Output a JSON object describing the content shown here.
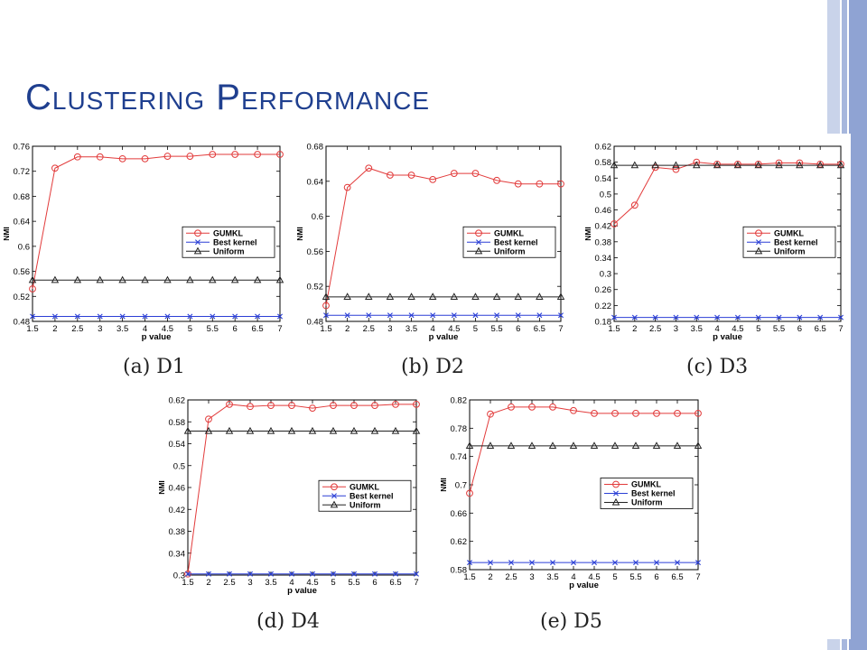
{
  "slide": {
    "title_first": "Clustering",
    "title_second": "Performance",
    "colors": {
      "title": "#1f3f8f",
      "gumkl": "#e23b3b",
      "best": "#2b3fd6",
      "uniform": "#222222"
    }
  },
  "chart_data": [
    {
      "type": "line",
      "caption": "(a) D1",
      "x": [
        1.5,
        2,
        2.5,
        3,
        3.5,
        4,
        4.5,
        5,
        5.5,
        6,
        6.5,
        7
      ],
      "x_tick_labels": [
        "1.5",
        "2",
        "2.5",
        "3",
        "3.5",
        "4",
        "4.5",
        "5",
        "5.5",
        "6",
        "6.5",
        "7"
      ],
      "xlabel": "p value",
      "ylabel": "NMI",
      "ylim": [
        0.48,
        0.76
      ],
      "y_ticks": [
        0.48,
        0.52,
        0.56,
        0.6,
        0.64,
        0.68,
        0.72,
        0.76
      ],
      "y_tick_labels": [
        "0.48",
        "0.52",
        "0.56",
        "0.6",
        "0.64",
        "0.68",
        "0.72",
        "0.76"
      ],
      "legend_position": "center-right",
      "series": [
        {
          "name": "GUMKL",
          "marker": "circle",
          "color": "#e23b3b",
          "values": [
            0.532,
            0.725,
            0.743,
            0.743,
            0.74,
            0.74,
            0.744,
            0.744,
            0.747,
            0.747,
            0.747,
            0.747
          ]
        },
        {
          "name": "Best kernel",
          "marker": "x",
          "color": "#2b3fd6",
          "values": [
            0.488,
            0.488,
            0.488,
            0.488,
            0.488,
            0.488,
            0.488,
            0.488,
            0.488,
            0.488,
            0.488,
            0.488
          ]
        },
        {
          "name": "Uniform",
          "marker": "triangle",
          "color": "#222222",
          "values": [
            0.546,
            0.546,
            0.546,
            0.546,
            0.546,
            0.546,
            0.546,
            0.546,
            0.546,
            0.546,
            0.546,
            0.546
          ]
        }
      ]
    },
    {
      "type": "line",
      "caption": "(b) D2",
      "x": [
        1.5,
        2,
        2.5,
        3,
        3.5,
        4,
        4.5,
        5,
        5.5,
        6,
        6.5,
        7
      ],
      "x_tick_labels": [
        "1.5",
        "2",
        "2.5",
        "3",
        "3.5",
        "4",
        "4.5",
        "5",
        "5.5",
        "6",
        "6.5",
        "7"
      ],
      "xlabel": "p value",
      "ylabel": "NMI",
      "ylim": [
        0.48,
        0.68
      ],
      "y_ticks": [
        0.48,
        0.52,
        0.56,
        0.6,
        0.64,
        0.68
      ],
      "y_tick_labels": [
        "0.48",
        "0.52",
        "0.56",
        "0.6",
        "0.64",
        "0.68"
      ],
      "legend_position": "center-right",
      "series": [
        {
          "name": "GUMKL",
          "marker": "circle",
          "color": "#e23b3b",
          "values": [
            0.498,
            0.633,
            0.655,
            0.647,
            0.647,
            0.642,
            0.649,
            0.649,
            0.641,
            0.637,
            0.637,
            0.637
          ]
        },
        {
          "name": "Best kernel",
          "marker": "x",
          "color": "#2b3fd6",
          "values": [
            0.487,
            0.487,
            0.487,
            0.487,
            0.487,
            0.487,
            0.487,
            0.487,
            0.487,
            0.487,
            0.487,
            0.487
          ]
        },
        {
          "name": "Uniform",
          "marker": "triangle",
          "color": "#222222",
          "values": [
            0.508,
            0.508,
            0.508,
            0.508,
            0.508,
            0.508,
            0.508,
            0.508,
            0.508,
            0.508,
            0.508,
            0.508
          ]
        }
      ]
    },
    {
      "type": "line",
      "caption": "(c) D3",
      "x": [
        1.5,
        2,
        2.5,
        3,
        3.5,
        4,
        4.5,
        5,
        5.5,
        6,
        6.5,
        7
      ],
      "x_tick_labels": [
        "1.5",
        "2",
        "2.5",
        "3",
        "3.5",
        "4",
        "4.5",
        "5",
        "5.5",
        "6",
        "6.5",
        "7"
      ],
      "xlabel": "p value",
      "ylabel": "NMI",
      "ylim": [
        0.18,
        0.62
      ],
      "y_ticks": [
        0.18,
        0.22,
        0.26,
        0.3,
        0.34,
        0.38,
        0.42,
        0.46,
        0.5,
        0.54,
        0.58,
        0.62
      ],
      "y_tick_labels": [
        "0.18",
        "0.22",
        "0.26",
        "0.3",
        "0.34",
        "0.38",
        "0.42",
        "0.46",
        "0.5",
        "0.54",
        "0.58",
        "0.62"
      ],
      "legend_position": "center-right",
      "series": [
        {
          "name": "GUMKL",
          "marker": "circle",
          "color": "#e23b3b",
          "values": [
            0.425,
            0.472,
            0.567,
            0.562,
            0.58,
            0.575,
            0.575,
            0.575,
            0.578,
            0.578,
            0.575,
            0.575
          ]
        },
        {
          "name": "Best kernel",
          "marker": "x",
          "color": "#2b3fd6",
          "values": [
            0.19,
            0.19,
            0.19,
            0.19,
            0.19,
            0.19,
            0.19,
            0.19,
            0.19,
            0.19,
            0.19,
            0.19
          ]
        },
        {
          "name": "Uniform",
          "marker": "triangle",
          "color": "#222222",
          "values": [
            0.572,
            0.572,
            0.572,
            0.572,
            0.572,
            0.572,
            0.572,
            0.572,
            0.572,
            0.572,
            0.572,
            0.572
          ]
        }
      ]
    },
    {
      "type": "line",
      "caption": "(d) D4",
      "x": [
        1.5,
        2,
        2.5,
        3,
        3.5,
        4,
        4.5,
        5,
        5.5,
        6,
        6.5,
        7
      ],
      "x_tick_labels": [
        "1.5",
        "2",
        "2.5",
        "3",
        "3.5",
        "4",
        "4.5",
        "5",
        "5.5",
        "6",
        "6.5",
        "7"
      ],
      "xlabel": "p value",
      "ylabel": "NMI",
      "ylim": [
        0.3,
        0.62
      ],
      "y_ticks": [
        0.3,
        0.34,
        0.38,
        0.42,
        0.46,
        0.5,
        0.54,
        0.58,
        0.62
      ],
      "y_tick_labels": [
        "0.3",
        "0.34",
        "0.38",
        "0.42",
        "0.46",
        "0.5",
        "0.54",
        "0.58",
        "0.62"
      ],
      "legend_position": "center-right",
      "series": [
        {
          "name": "GUMKL",
          "marker": "circle",
          "color": "#e23b3b",
          "values": [
            0.302,
            0.585,
            0.612,
            0.608,
            0.61,
            0.61,
            0.605,
            0.61,
            0.61,
            0.61,
            0.612,
            0.612
          ]
        },
        {
          "name": "Best kernel",
          "marker": "x",
          "color": "#2b3fd6",
          "values": [
            0.302,
            0.302,
            0.302,
            0.302,
            0.302,
            0.302,
            0.302,
            0.302,
            0.302,
            0.302,
            0.302,
            0.302
          ]
        },
        {
          "name": "Uniform",
          "marker": "triangle",
          "color": "#222222",
          "values": [
            0.563,
            0.563,
            0.563,
            0.563,
            0.563,
            0.563,
            0.563,
            0.563,
            0.563,
            0.563,
            0.563,
            0.563
          ]
        }
      ]
    },
    {
      "type": "line",
      "caption": "(e) D5",
      "x": [
        1.5,
        2,
        2.5,
        3,
        3.5,
        4,
        4.5,
        5,
        5.5,
        6,
        6.5,
        7
      ],
      "x_tick_labels": [
        "1.5",
        "2",
        "2.5",
        "3",
        "3.5",
        "4",
        "4.5",
        "5",
        "5.5",
        "6",
        "6.5",
        "7"
      ],
      "xlabel": "p value",
      "ylabel": "NMI",
      "ylim": [
        0.58,
        0.82
      ],
      "y_ticks": [
        0.58,
        0.62,
        0.66,
        0.7,
        0.74,
        0.78,
        0.82
      ],
      "y_tick_labels": [
        "0.58",
        "0.62",
        "0.66",
        "0.7",
        "0.74",
        "0.78",
        "0.82"
      ],
      "legend_position": "center-right",
      "series": [
        {
          "name": "GUMKL",
          "marker": "circle",
          "color": "#e23b3b",
          "values": [
            0.688,
            0.8,
            0.81,
            0.81,
            0.81,
            0.805,
            0.801,
            0.801,
            0.801,
            0.801,
            0.801,
            0.801
          ]
        },
        {
          "name": "Best kernel",
          "marker": "x",
          "color": "#2b3fd6",
          "values": [
            0.59,
            0.59,
            0.59,
            0.59,
            0.59,
            0.59,
            0.59,
            0.59,
            0.59,
            0.59,
            0.59,
            0.59
          ]
        },
        {
          "name": "Uniform",
          "marker": "triangle",
          "color": "#222222",
          "values": [
            0.755,
            0.755,
            0.755,
            0.755,
            0.755,
            0.755,
            0.755,
            0.755,
            0.755,
            0.755,
            0.755,
            0.755
          ]
        }
      ]
    }
  ]
}
